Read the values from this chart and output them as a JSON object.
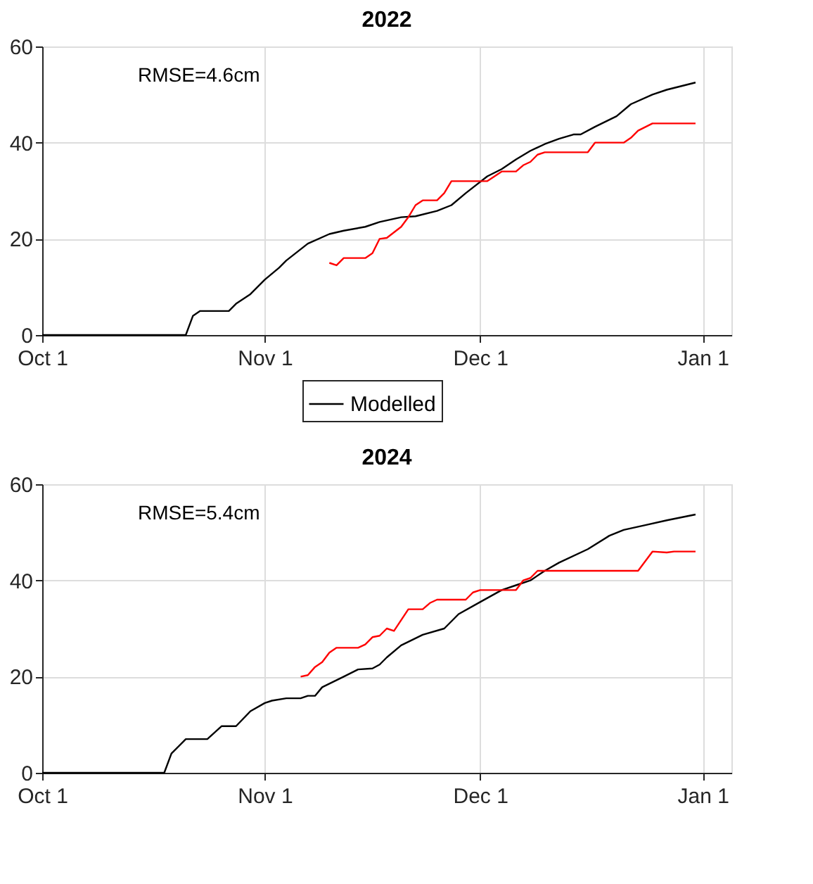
{
  "chart_data": [
    {
      "type": "line",
      "title": "2022",
      "annotations": [
        "RMSE=4.6cm"
      ],
      "xlim": [
        "2022-10-01",
        "2023-01-05"
      ],
      "xticks": [
        {
          "value": "2022-10-01",
          "label": "Oct 1"
        },
        {
          "value": "2022-11-01",
          "label": "Nov 1"
        },
        {
          "value": "2022-12-01",
          "label": "Dec 1"
        },
        {
          "value": "2023-01-01",
          "label": "Jan 1"
        }
      ],
      "ylim": [
        0,
        60
      ],
      "yticks": [
        0,
        20,
        40,
        60
      ],
      "grid": true,
      "legend": "bottom",
      "line_style": "solid",
      "marker": "none",
      "series": [
        {
          "name": "Modelled",
          "color": "#000000",
          "x": [
            "2022-10-01",
            "2022-10-21",
            "2022-10-22",
            "2022-10-23",
            "2022-10-27",
            "2022-10-28",
            "2022-10-30",
            "2022-11-01",
            "2022-11-03",
            "2022-11-04",
            "2022-11-07",
            "2022-11-10",
            "2022-11-12",
            "2022-11-15",
            "2022-11-17",
            "2022-11-20",
            "2022-11-22",
            "2022-11-25",
            "2022-11-27",
            "2022-11-29",
            "2022-12-02",
            "2022-12-04",
            "2022-12-06",
            "2022-12-08",
            "2022-12-10",
            "2022-12-12",
            "2022-12-14",
            "2022-12-15",
            "2022-12-17",
            "2022-12-20",
            "2022-12-22",
            "2022-12-25",
            "2022-12-27",
            "2022-12-31"
          ],
          "values": [
            0,
            0,
            4,
            5,
            5,
            6.5,
            8.5,
            11.5,
            14,
            15.5,
            19,
            21,
            21.7,
            22.5,
            23.5,
            24.5,
            24.7,
            25.8,
            27,
            29.5,
            33,
            34.5,
            36.5,
            38.3,
            39.7,
            40.8,
            41.7,
            41.7,
            43.3,
            45.5,
            48,
            50,
            51,
            52.5
          ]
        },
        {
          "color": "#ff0000",
          "x": [
            "2022-11-10",
            "2022-11-11",
            "2022-11-12",
            "2022-11-15",
            "2022-11-16",
            "2022-11-17",
            "2022-11-18",
            "2022-11-20",
            "2022-11-21",
            "2022-11-22",
            "2022-11-23",
            "2022-11-25",
            "2022-11-26",
            "2022-11-27",
            "2022-12-02",
            "2022-12-04",
            "2022-12-06",
            "2022-12-07",
            "2022-12-08",
            "2022-12-09",
            "2022-12-10",
            "2022-12-16",
            "2022-12-17",
            "2022-12-21",
            "2022-12-22",
            "2022-12-23",
            "2022-12-25",
            "2022-12-31"
          ],
          "values": [
            15,
            14.5,
            16,
            16,
            17,
            20,
            20.2,
            22.5,
            24.5,
            27,
            28,
            28,
            29.5,
            32,
            32,
            34,
            34,
            35.3,
            36,
            37.5,
            38,
            38,
            40,
            40,
            41,
            42.5,
            44,
            44
          ]
        }
      ]
    },
    {
      "type": "line",
      "title": "2024",
      "annotations": [
        "RMSE=5.4cm"
      ],
      "xlim": [
        "2024-10-01",
        "2025-01-05"
      ],
      "xticks": [
        {
          "value": "2024-10-01",
          "label": "Oct 1"
        },
        {
          "value": "2024-11-01",
          "label": "Nov 1"
        },
        {
          "value": "2024-12-01",
          "label": "Dec 1"
        },
        {
          "value": "2025-01-01",
          "label": "Jan 1"
        }
      ],
      "ylim": [
        0,
        60
      ],
      "yticks": [
        0,
        20,
        40,
        60
      ],
      "grid": true,
      "line_style": "solid",
      "marker": "none",
      "series": [
        {
          "color": "#000000",
          "x": [
            "2024-10-01",
            "2024-10-18",
            "2024-10-19",
            "2024-10-21",
            "2024-10-24",
            "2024-10-26",
            "2024-10-28",
            "2024-10-30",
            "2024-11-01",
            "2024-11-02",
            "2024-11-04",
            "2024-11-06",
            "2024-11-07",
            "2024-11-08",
            "2024-11-09",
            "2024-11-12",
            "2024-11-14",
            "2024-11-16",
            "2024-11-17",
            "2024-11-18",
            "2024-11-20",
            "2024-11-23",
            "2024-11-26",
            "2024-11-28",
            "2024-12-01",
            "2024-12-04",
            "2024-12-06",
            "2024-12-08",
            "2024-12-10",
            "2024-12-12",
            "2024-12-16",
            "2024-12-19",
            "2024-12-21",
            "2024-12-24",
            "2024-12-27",
            "2024-12-31"
          ],
          "values": [
            0,
            0,
            4,
            7,
            7,
            9.7,
            9.7,
            12.8,
            14.5,
            15,
            15.5,
            15.5,
            16,
            16,
            17.8,
            20,
            21.5,
            21.7,
            22.5,
            24,
            26.5,
            28.7,
            30,
            33,
            35.5,
            38,
            39,
            40,
            42,
            43.7,
            46.5,
            49.3,
            50.5,
            51.5,
            52.5,
            53.7
          ]
        },
        {
          "color": "#ff0000",
          "x": [
            "2024-11-06",
            "2024-11-07",
            "2024-11-08",
            "2024-11-09",
            "2024-11-10",
            "2024-11-11",
            "2024-11-14",
            "2024-11-15",
            "2024-11-16",
            "2024-11-17",
            "2024-11-18",
            "2024-11-19",
            "2024-11-21",
            "2024-11-23",
            "2024-11-24",
            "2024-11-25",
            "2024-11-29",
            "2024-11-30",
            "2024-12-01",
            "2024-12-06",
            "2024-12-07",
            "2024-12-08",
            "2024-12-09",
            "2024-12-10",
            "2024-12-23",
            "2024-12-25",
            "2024-12-27",
            "2024-12-28",
            "2024-12-31"
          ],
          "values": [
            20,
            20.3,
            22,
            23,
            25,
            26,
            26,
            26.7,
            28.2,
            28.5,
            30,
            29.5,
            34,
            34,
            35.3,
            36,
            36,
            37.5,
            38,
            38,
            40,
            40.5,
            42,
            42,
            42,
            46,
            45.8,
            46,
            46
          ]
        }
      ]
    }
  ]
}
